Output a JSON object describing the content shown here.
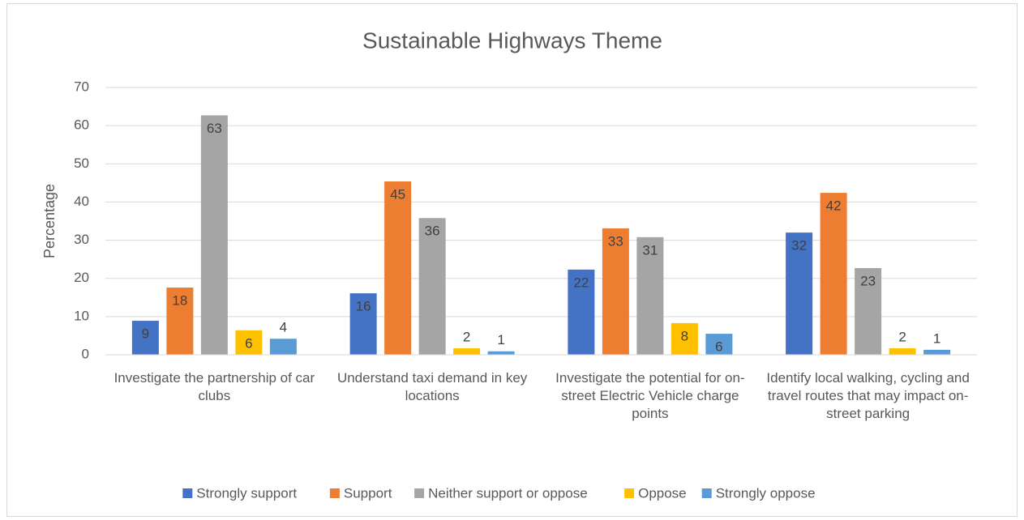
{
  "chart_data": {
    "type": "bar",
    "title": "Sustainable Highways Theme",
    "y_label": "Percentage",
    "categories": [
      "Investigate the partnership of car clubs",
      "Understand taxi demand in key locations",
      "Investigate the potential for on-street Electric Vehicle charge points",
      "Identify local walking, cycling and travel routes that may impact on-street parking"
    ],
    "series": [
      {
        "name": "Strongly support",
        "color": "#4472c4",
        "values": [
          8.9,
          16.1,
          22.3,
          32.0
        ],
        "value_labels": [
          "9",
          "16",
          "22",
          "32"
        ]
      },
      {
        "name": "Support",
        "color": "#ed7d31",
        "values": [
          17.6,
          45.4,
          33.1,
          42.4
        ],
        "value_labels": [
          "18",
          "45",
          "33",
          "42"
        ]
      },
      {
        "name": "Neither support or oppose",
        "color": "#a5a5a5",
        "values": [
          62.7,
          35.8,
          30.8,
          22.7
        ],
        "value_labels": [
          "63",
          "36",
          "31",
          "23"
        ]
      },
      {
        "name": "Oppose",
        "color": "#ffc000",
        "values": [
          6.4,
          1.7,
          8.3,
          1.7
        ],
        "value_labels": [
          "6",
          "2",
          "8",
          "2"
        ]
      },
      {
        "name": "Strongly oppose",
        "color": "#5b9bd5",
        "values": [
          4.2,
          0.9,
          5.5,
          1.3
        ],
        "value_labels": [
          "4",
          "1",
          "6",
          "1"
        ]
      }
    ],
    "ylim": [
      0,
      70
    ],
    "yticks": [
      0,
      10,
      20,
      30,
      40,
      50,
      60,
      70
    ],
    "grid": true,
    "legend": "bottom"
  }
}
